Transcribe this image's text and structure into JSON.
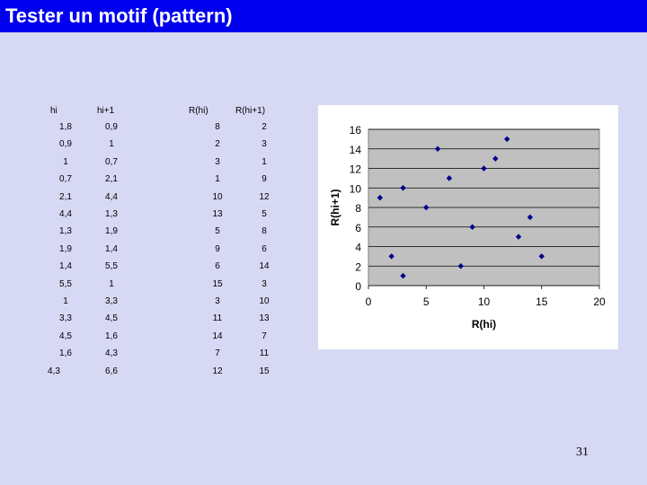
{
  "slide": {
    "title": "Tester un motif (pattern)",
    "page_number": "31"
  },
  "table": {
    "headers": [
      "hi",
      "hi+1",
      "R(hi)",
      "R(hi+1)"
    ],
    "rows": [
      [
        "1,8",
        "0,9",
        "8",
        "2"
      ],
      [
        "0,9",
        "1",
        "2",
        "3"
      ],
      [
        "1",
        "0,7",
        "3",
        "1"
      ],
      [
        "0,7",
        "2,1",
        "1",
        "9"
      ],
      [
        "2,1",
        "4,4",
        "10",
        "12"
      ],
      [
        "4,4",
        "1,3",
        "13",
        "5"
      ],
      [
        "1,3",
        "1,9",
        "5",
        "8"
      ],
      [
        "1,9",
        "1,4",
        "9",
        "6"
      ],
      [
        "1,4",
        "5,5",
        "6",
        "14"
      ],
      [
        "5,5",
        "1",
        "15",
        "3"
      ],
      [
        "1",
        "3,3",
        "3",
        "10"
      ],
      [
        "3,3",
        "4,5",
        "11",
        "13"
      ],
      [
        "4,5",
        "1,6",
        "14",
        "7"
      ],
      [
        "1,6",
        "4,3",
        "7",
        "11"
      ],
      [
        "4,3",
        "6,6",
        "12",
        "15"
      ]
    ]
  },
  "chart_data": {
    "type": "scatter",
    "xlabel": "R(hi)",
    "ylabel": "R(hi+1)",
    "xlim": [
      0,
      20
    ],
    "ylim": [
      0,
      16
    ],
    "xticks": [
      "0",
      "5",
      "10",
      "15",
      "20"
    ],
    "yticks": [
      "0",
      "2",
      "4",
      "6",
      "8",
      "10",
      "12",
      "14",
      "16"
    ],
    "grid": true,
    "marker_color": "#00008b",
    "plot_bg": "#c0c0c0",
    "points": [
      [
        1,
        9
      ],
      [
        2,
        3
      ],
      [
        3,
        1
      ],
      [
        3,
        10
      ],
      [
        5,
        8
      ],
      [
        6,
        14
      ],
      [
        7,
        11
      ],
      [
        8,
        2
      ],
      [
        9,
        6
      ],
      [
        10,
        12
      ],
      [
        11,
        13
      ],
      [
        12,
        15
      ],
      [
        13,
        5
      ],
      [
        14,
        7
      ],
      [
        15,
        3
      ]
    ]
  }
}
